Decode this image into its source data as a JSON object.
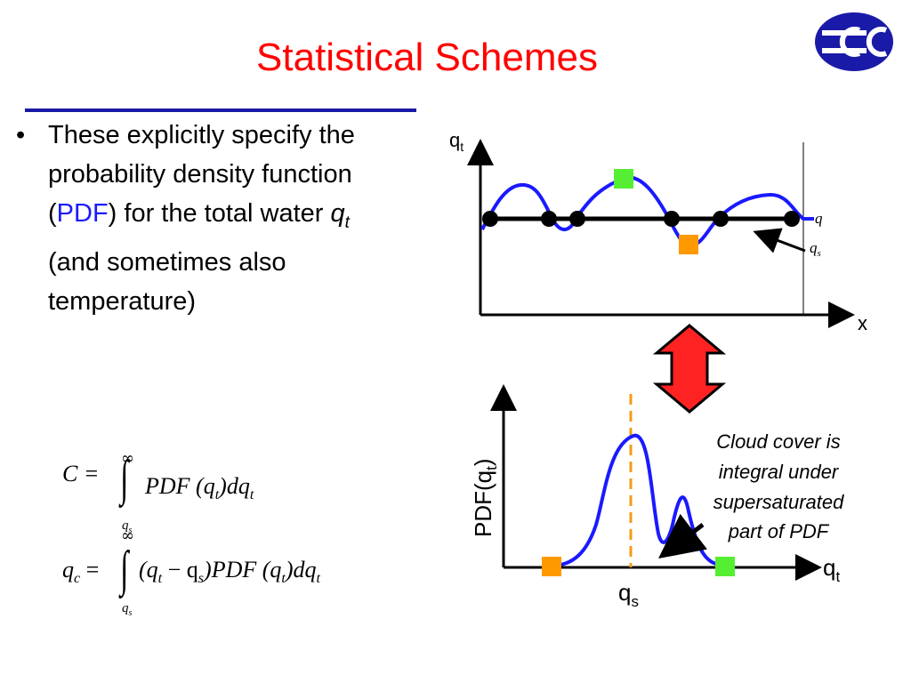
{
  "title": "Statistical Schemes",
  "bullet": {
    "symbol": "•",
    "part1": "These explicitly specify the probability density function (",
    "pdf": "PDF",
    "part2": ") for the total water ",
    "q": "q",
    "q_sub": "t",
    "part3": " (and sometimes also temperature)",
    "pdf_color": "#1a1aff"
  },
  "equations": {
    "eq1": {
      "lhs": "C =",
      "body": "PDF (q",
      "sub1": "t",
      "body2": ")dq",
      "sub2": "t",
      "upper": "∞",
      "lower": "q",
      "lower_sub": "s"
    },
    "eq2": {
      "lhs": "q",
      "lhs_sub": "c",
      "eqsign": "=",
      "body": "(q",
      "sub1": "t",
      "minus": " − q",
      "sub2": "s",
      "body2": ")PDF (q",
      "sub3": "t",
      "body3": ")dq",
      "sub4": "t",
      "upper": "∞",
      "lower": "q",
      "lower_sub": "s"
    }
  },
  "top_plot": {
    "y_axis": "q",
    "y_axis_sub": "t",
    "x_axis": "x",
    "label_q": "q",
    "label_qs": "q",
    "label_qs_sub": "s"
  },
  "bottom_plot": {
    "y_axis": "PDF(q",
    "y_axis_sub": "t",
    "y_axis_close": ")",
    "x_axis": "q",
    "x_axis_sub": "t",
    "qs": "q",
    "qs_sub": "s",
    "annotation": [
      "Cloud cover is",
      "integral under",
      "supersaturated",
      "part of PDF"
    ]
  },
  "colors": {
    "title": "#ff0000",
    "curve": "#1a1aff",
    "dashed": "#f39c12",
    "green_marker": "#55ee33",
    "orange_marker": "#ff9900",
    "arrow_fill": "#ff2222",
    "rule": "#1a1aa8",
    "logo": "#1a1aa8"
  },
  "icons": [
    "ecmwf-logo-icon",
    "double-arrow-icon",
    "pointer-arrow-icon"
  ]
}
